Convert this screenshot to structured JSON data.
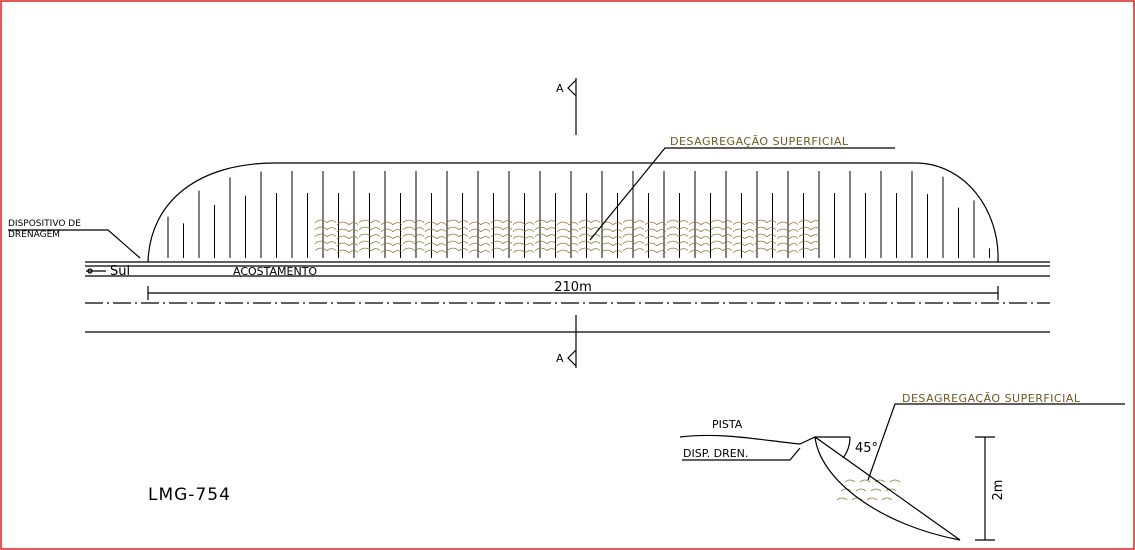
{
  "section_marks": [
    "A",
    "A"
  ],
  "plan": {
    "callout": "DESAGREGAÇÃO SUPERFICIAL",
    "drainage": [
      "DISPOSITIVO DE",
      "DRENAGEM"
    ],
    "direction": "Sul",
    "shoulder": "ACOSTAMENTO",
    "length": "210m"
  },
  "section": {
    "callout": "DESAGREGAÇÃO SUPERFICIAL",
    "road": "PISTA",
    "drain": "DISP. DREN.",
    "angle": "45°",
    "height": "2m"
  },
  "road_id": "LMG-754"
}
